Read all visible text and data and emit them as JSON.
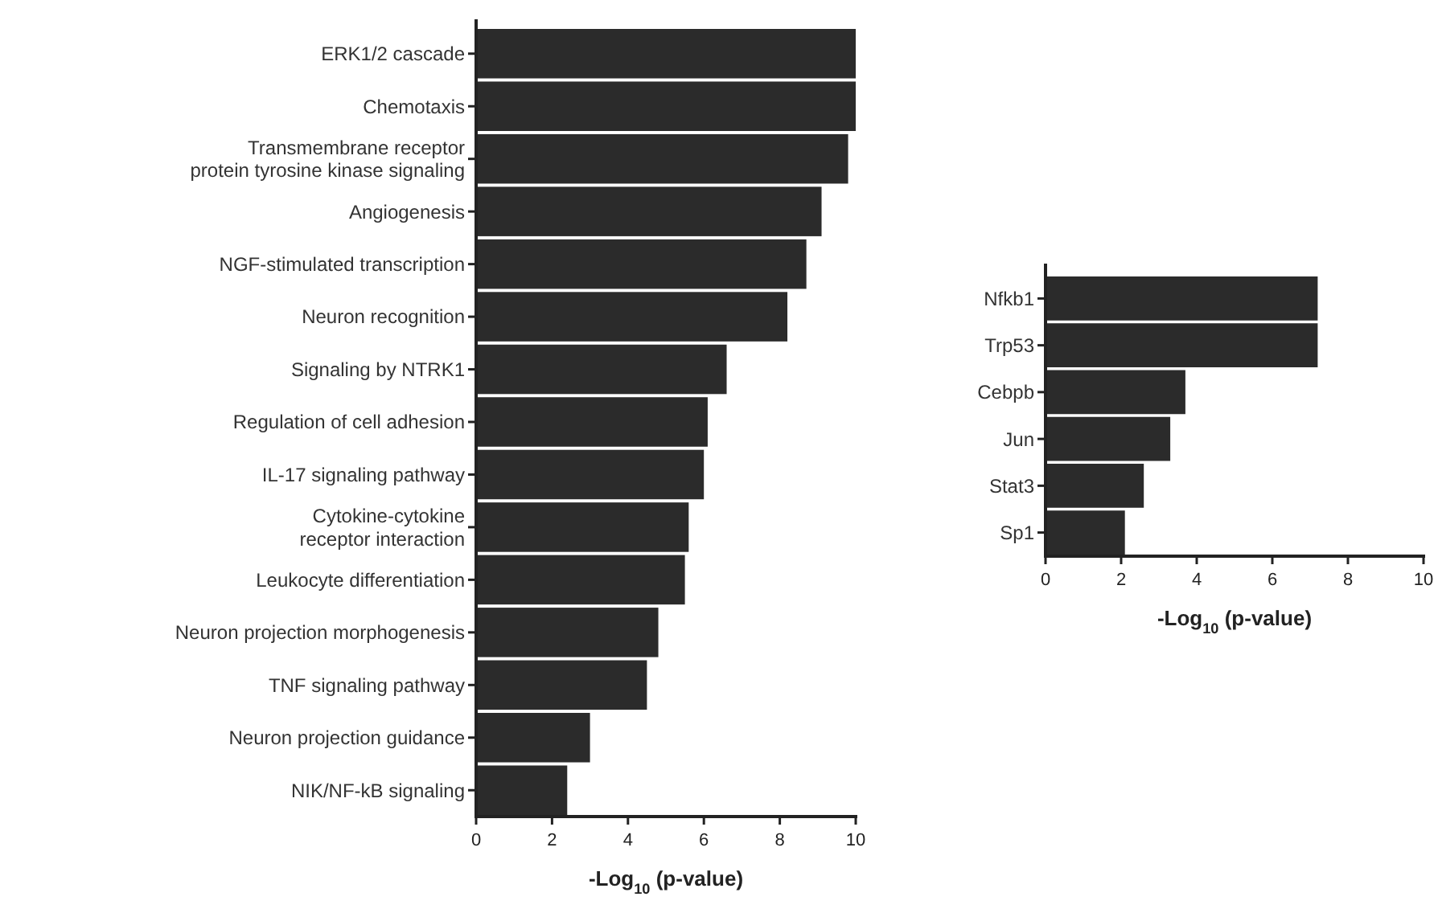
{
  "chart_data": [
    {
      "type": "bar",
      "orientation": "horizontal",
      "xlabel": "-Log$_{10}$ (p-value)",
      "categories": [
        "ERK1/2 cascade",
        "Chemotaxis",
        "Transmembrane receptor\nprotein tyrosine kinase signaling",
        "Angiogenesis",
        "NGF-stimulated transcription",
        "Neuron recognition",
        "Signaling by NTRK1",
        "Regulation of cell adhesion",
        "IL-17 signaling pathway",
        "Cytokine-cytokine\nreceptor interaction",
        "Leukocyte differentiation",
        "Neuron projection morphogenesis",
        "TNF signaling pathway",
        "Neuron projection guidance",
        "NIK/NF-kB signaling"
      ],
      "values": [
        10.0,
        10.0,
        9.8,
        9.1,
        8.7,
        8.2,
        6.6,
        6.1,
        6.0,
        5.6,
        5.5,
        4.8,
        4.5,
        3.0,
        2.4
      ],
      "color": "#2b2b2b",
      "xlim": [
        0,
        10
      ],
      "xticks": [
        0,
        2,
        4,
        6,
        8,
        10
      ]
    },
    {
      "type": "bar",
      "orientation": "horizontal",
      "xlabel": "-Log$_{10}$ (p-value)",
      "categories": [
        "Nfkb1",
        "Trp53",
        "Cebpb",
        "Jun",
        "Stat3",
        "Sp1"
      ],
      "values": [
        7.2,
        7.2,
        3.7,
        3.3,
        2.6,
        2.1
      ],
      "color": "#2b2b2b",
      "xlim": [
        0,
        10
      ],
      "xticks": [
        0,
        2,
        4,
        6,
        8,
        10
      ]
    }
  ]
}
